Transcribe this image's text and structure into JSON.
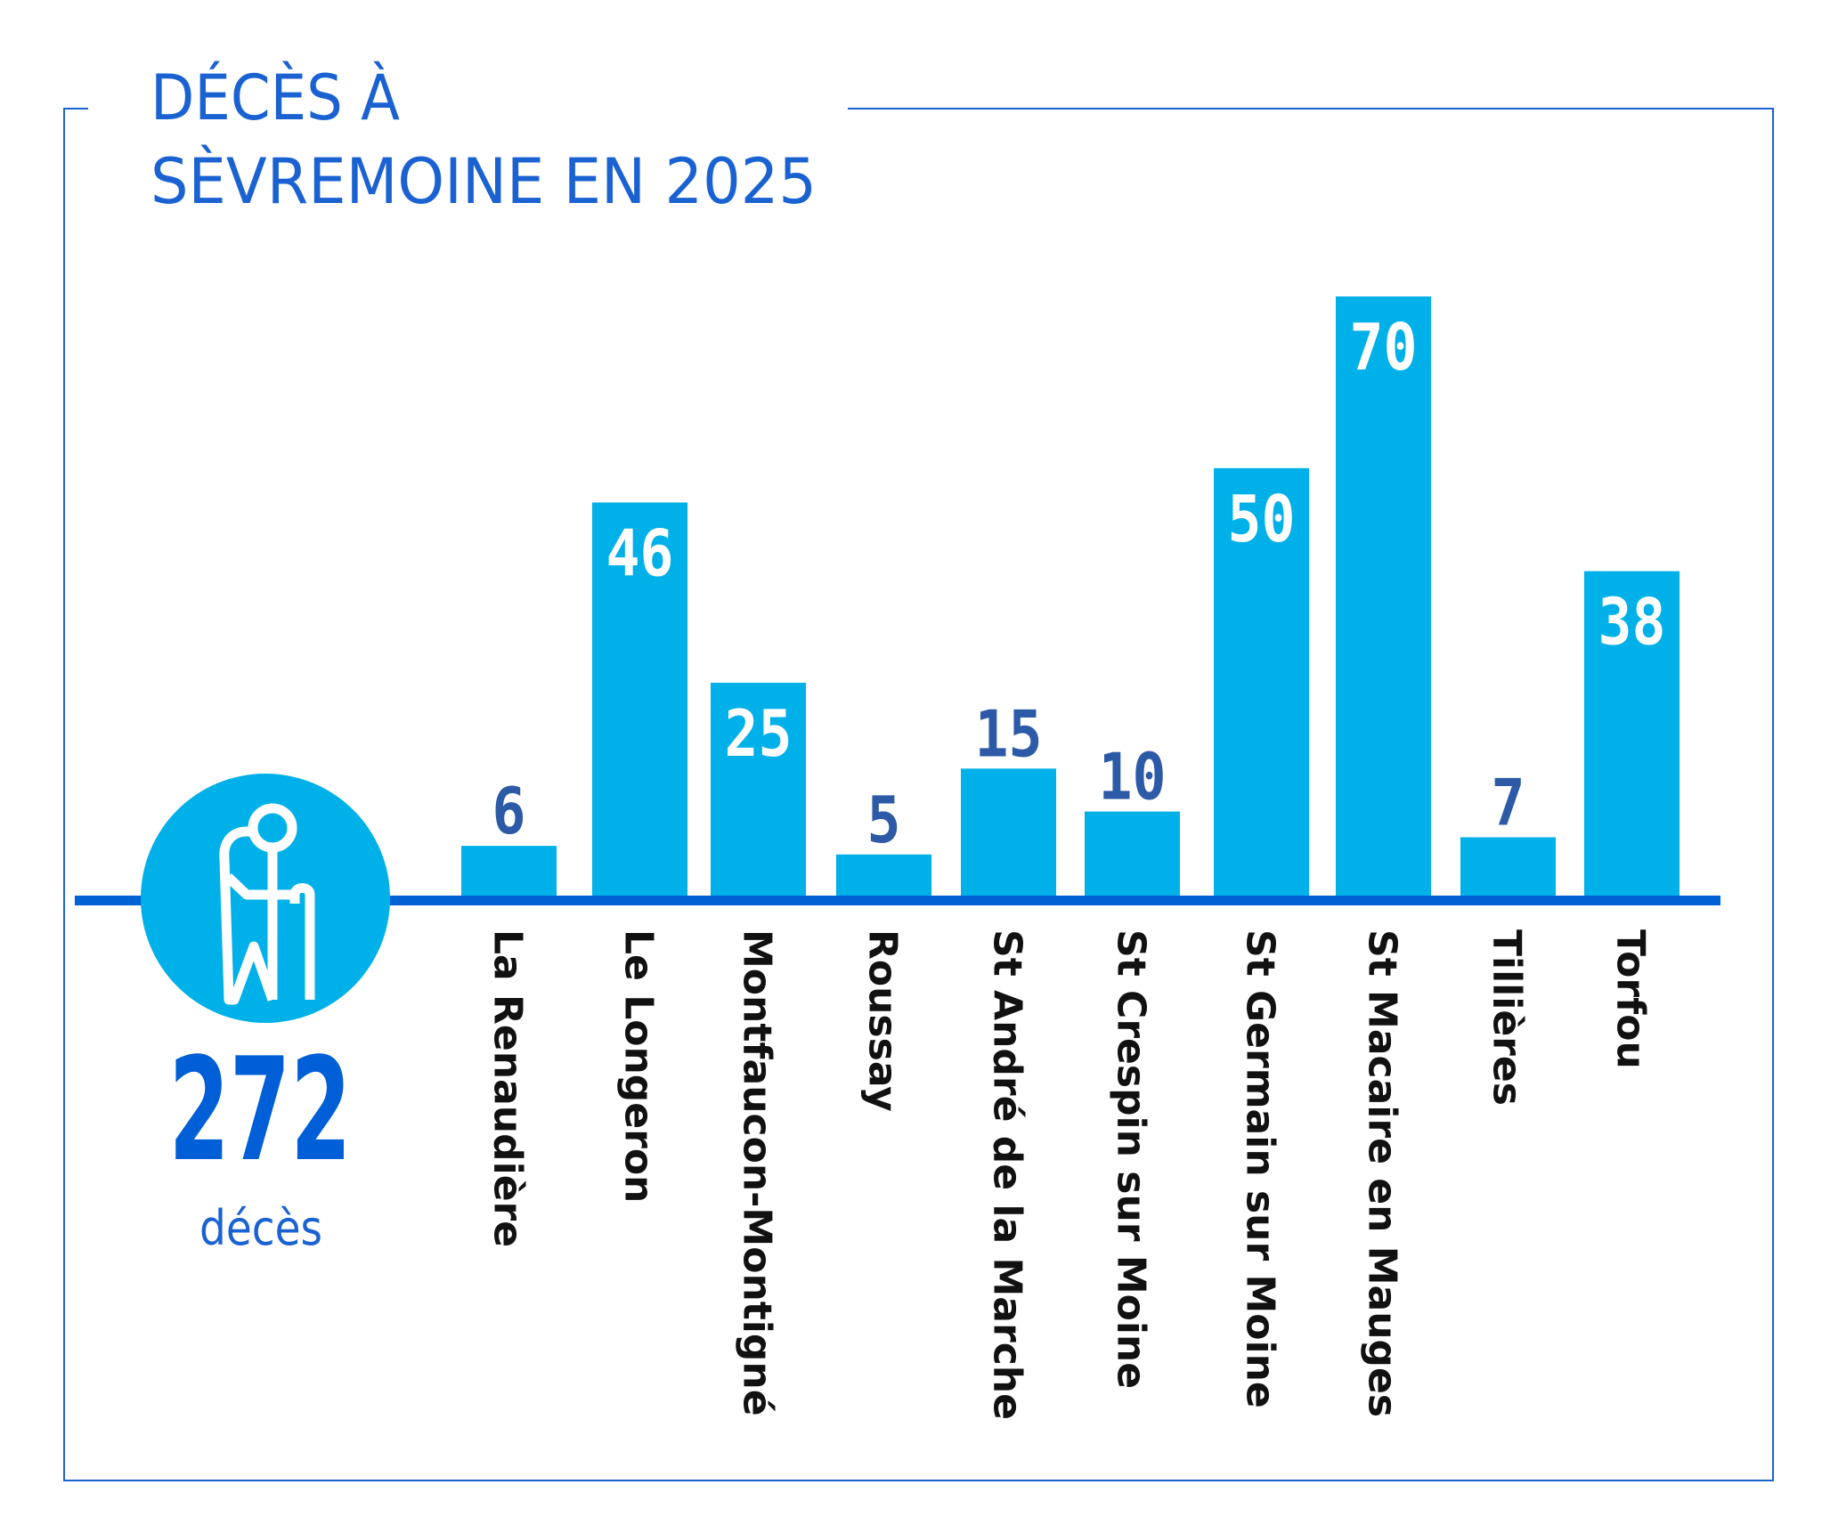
{
  "chart_data": {
    "type": "bar",
    "title_line1": "DÉCÈS À",
    "title_line2": "SÈVREMOINE EN 2025",
    "categories": [
      "La Renaudière",
      "Le Longeron",
      "Montfaucon-Montigné",
      "Roussay",
      "St André de la Marche",
      "St Crespin sur Moine",
      "St Germain sur Moine",
      "St Macaire en Mauges",
      "Tillières",
      "Torfou"
    ],
    "values": [
      6,
      46,
      25,
      5,
      15,
      10,
      50,
      70,
      7,
      38
    ],
    "xlabel": "",
    "ylabel": "",
    "ylim": [
      0,
      70
    ],
    "grid": false,
    "legend": "none",
    "total": {
      "value": "272",
      "unit": "décès",
      "icon": "elderly-person-with-cane-icon"
    }
  },
  "colors": {
    "bar": "#00b0e8",
    "axis": "#0061d5",
    "title": "#1a62d2",
    "label_outside": "#2c5aa6",
    "label_inside": "#ffffff",
    "category": "#111111",
    "total": "#005fd6"
  }
}
